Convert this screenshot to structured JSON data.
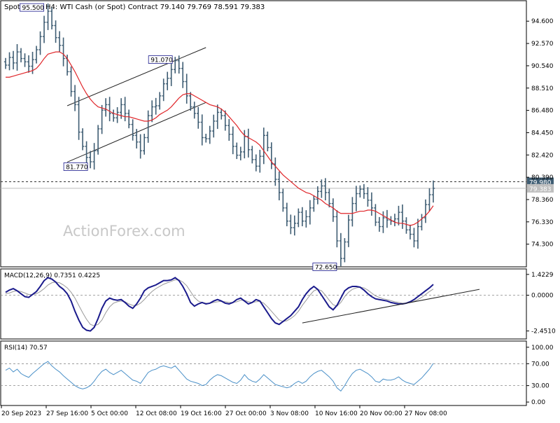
{
  "header": {
    "symbol": "SpotCrude",
    "timeframe": "H4:",
    "description": "WTI Cash (or Spot) Contract",
    "ohlc": "79.140 79.769 78.591 79.383"
  },
  "watermark": "ActionForex.com",
  "colors": {
    "candles": "#3f5d73",
    "ma": "#e0262a",
    "channel": "#222222",
    "macd_line": "#1a1a8c",
    "macd_signal": "#9a9a9a",
    "rsi_line": "#4a90c8",
    "grid_dash": "#888888"
  },
  "chart_data": [
    {
      "type": "line",
      "name": "price",
      "title": "SpotCrude, H4: WTI Cash (or Spot) Contract",
      "ylim": [
        72.3,
        96.4
      ],
      "y_ticks": [
        94.6,
        92.57,
        90.54,
        88.51,
        86.48,
        84.45,
        82.42,
        80.39,
        78.36,
        76.33,
        74.3
      ],
      "y_tick_labels": [
        "94.600",
        "92.570",
        "90.540",
        "88.510",
        "86.480",
        "84.450",
        "82.420",
        "80.390",
        "78.360",
        "76.330",
        "74.300"
      ],
      "x_ticks": [
        "20 Sep 2023",
        "27 Sep 16:00",
        "5 Oct 00:00",
        "12 Oct 08:00",
        "19 Oct 16:00",
        "27 Oct 00:00",
        "3 Nov 08:00",
        "10 Nov 16:00",
        "20 Nov 00:00",
        "27 Nov 08:00"
      ],
      "close": [
        90.6,
        91.3,
        90.8,
        91.8,
        91.2,
        90.9,
        90.5,
        91.1,
        92.0,
        93.2,
        94.5,
        95.5,
        94.2,
        93.1,
        92.4,
        91.2,
        90.0,
        88.2,
        87.0,
        84.5,
        83.2,
        82.2,
        81.8,
        82.8,
        84.8,
        86.5,
        87.0,
        86.2,
        85.8,
        86.3,
        87.0,
        86.2,
        85.2,
        84.2,
        83.6,
        82.8,
        84.0,
        86.0,
        86.8,
        86.9,
        87.8,
        88.9,
        89.4,
        90.2,
        91.0,
        90.3,
        89.1,
        87.8,
        86.8,
        86.2,
        85.4,
        84.0,
        83.9,
        84.6,
        85.5,
        86.3,
        86.0,
        85.1,
        84.3,
        83.2,
        82.4,
        82.7,
        84.1,
        82.9,
        82.0,
        81.4,
        82.3,
        84.2,
        83.1,
        81.6,
        80.2,
        79.0,
        77.6,
        76.4,
        75.8,
        76.2,
        77.2,
        76.4,
        76.8,
        77.6,
        78.4,
        79.1,
        79.6,
        79.0,
        78.0,
        76.8,
        74.6,
        73.0,
        74.5,
        76.5,
        78.0,
        78.9,
        79.3,
        78.9,
        78.3,
        77.6,
        76.3,
        75.9,
        76.7,
        76.5,
        76.4,
        76.6,
        77.2,
        76.4,
        75.6,
        75.2,
        74.6,
        75.9,
        76.7,
        77.9,
        78.8,
        79.383
      ],
      "ma": [
        89.5,
        89.5,
        89.6,
        89.7,
        89.8,
        89.9,
        90.0,
        90.1,
        90.3,
        90.7,
        91.2,
        91.6,
        91.7,
        91.8,
        91.8,
        91.6,
        91.2,
        90.6,
        90.0,
        89.3,
        88.6,
        88.0,
        87.5,
        87.1,
        86.8,
        86.7,
        86.6,
        86.4,
        86.2,
        86.1,
        86.0,
        85.9,
        85.9,
        85.8,
        85.7,
        85.6,
        85.5,
        85.5,
        85.6,
        85.8,
        86.1,
        86.3,
        86.5,
        86.8,
        87.2,
        87.6,
        87.9,
        88.0,
        88.0,
        87.8,
        87.6,
        87.4,
        87.2,
        87.0,
        86.9,
        86.8,
        86.6,
        86.3,
        85.9,
        85.5,
        85.1,
        84.6,
        84.2,
        84.0,
        83.8,
        83.6,
        83.3,
        82.8,
        82.3,
        81.8,
        81.4,
        81.0,
        80.6,
        80.3,
        80.0,
        79.7,
        79.4,
        79.2,
        79.0,
        78.9,
        78.7,
        78.5,
        78.3,
        78.0,
        77.8,
        77.6,
        77.3,
        77.1,
        77.1,
        77.1,
        77.1,
        77.2,
        77.3,
        77.3,
        77.4,
        77.4,
        77.3,
        77.1,
        76.9,
        76.7,
        76.5,
        76.3,
        76.2,
        76.2,
        76.1,
        76.0,
        76.1,
        76.3,
        76.6,
        76.9,
        77.3,
        77.8
      ],
      "annotations": [
        {
          "label": "95.500",
          "value": 95.5
        },
        {
          "label": "91.070",
          "value": 91.07
        },
        {
          "label": "81.770",
          "value": 81.77
        },
        {
          "label": "72.650",
          "value": 72.65
        }
      ],
      "level_lines": [
        {
          "label": "79.980",
          "value": 79.98,
          "style": "dashed"
        },
        {
          "label": "79.383",
          "value": 79.383,
          "style": "solid"
        }
      ],
      "channel_upper": {
        "start": [
          16,
          86.9
        ],
        "end": [
          52,
          92.2
        ]
      },
      "channel_lower": {
        "start": [
          16,
          81.77
        ],
        "end": [
          52,
          87.2
        ]
      }
    },
    {
      "type": "line",
      "name": "MACD",
      "label": "MACD(12,26,9) 0.7351 0.4225",
      "ylim": [
        -2.95,
        1.75
      ],
      "y_ticks": [
        1.4229,
        0.0,
        -2.451
      ],
      "y_tick_labels": [
        "1.4229",
        "0.0000",
        "-2.4510"
      ],
      "series": [
        {
          "name": "MACD",
          "values": [
            0.2,
            0.35,
            0.45,
            0.3,
            0.1,
            -0.1,
            -0.15,
            0.05,
            0.25,
            0.6,
            1.0,
            1.2,
            1.1,
            0.9,
            0.6,
            0.4,
            0.1,
            -0.4,
            -1.1,
            -1.7,
            -2.2,
            -2.4,
            -2.45,
            -2.2,
            -1.6,
            -0.9,
            -0.4,
            -0.2,
            -0.3,
            -0.35,
            -0.3,
            -0.5,
            -0.75,
            -0.9,
            -0.6,
            -0.2,
            0.3,
            0.5,
            0.6,
            0.7,
            0.85,
            1.0,
            1.0,
            1.05,
            1.2,
            1.0,
            0.6,
            0.1,
            -0.5,
            -0.75,
            -0.6,
            -0.5,
            -0.6,
            -0.55,
            -0.4,
            -0.3,
            -0.4,
            -0.55,
            -0.6,
            -0.5,
            -0.3,
            -0.2,
            -0.4,
            -0.6,
            -0.5,
            -0.3,
            -0.4,
            -0.8,
            -1.2,
            -1.6,
            -1.9,
            -2.0,
            -1.8,
            -1.6,
            -1.4,
            -1.1,
            -0.8,
            -0.3,
            0.1,
            0.4,
            0.6,
            0.4,
            0.0,
            -0.4,
            -0.8,
            -1.0,
            -0.7,
            -0.2,
            0.3,
            0.5,
            0.6,
            0.6,
            0.55,
            0.35,
            0.1,
            -0.1,
            -0.25,
            -0.3,
            -0.35,
            -0.4,
            -0.5,
            -0.55,
            -0.6,
            -0.6,
            -0.55,
            -0.45,
            -0.3,
            -0.1,
            0.1,
            0.3,
            0.5,
            0.7351
          ]
        },
        {
          "name": "Signal",
          "values": [
            0.1,
            0.15,
            0.25,
            0.3,
            0.25,
            0.15,
            0.05,
            0.05,
            0.1,
            0.25,
            0.45,
            0.7,
            0.85,
            0.9,
            0.85,
            0.7,
            0.5,
            0.2,
            -0.2,
            -0.7,
            -1.2,
            -1.65,
            -2.0,
            -2.1,
            -2.0,
            -1.7,
            -1.2,
            -0.8,
            -0.55,
            -0.45,
            -0.4,
            -0.45,
            -0.6,
            -0.7,
            -0.7,
            -0.55,
            -0.3,
            0.0,
            0.25,
            0.45,
            0.6,
            0.75,
            0.85,
            0.95,
            1.05,
            1.05,
            0.9,
            0.65,
            0.25,
            -0.15,
            -0.4,
            -0.5,
            -0.55,
            -0.55,
            -0.5,
            -0.45,
            -0.42,
            -0.45,
            -0.5,
            -0.5,
            -0.45,
            -0.35,
            -0.35,
            -0.45,
            -0.5,
            -0.45,
            -0.42,
            -0.55,
            -0.8,
            -1.1,
            -1.4,
            -1.7,
            -1.8,
            -1.75,
            -1.6,
            -1.4,
            -1.1,
            -0.7,
            -0.35,
            0.0,
            0.3,
            0.4,
            0.3,
            0.0,
            -0.35,
            -0.65,
            -0.75,
            -0.5,
            -0.1,
            0.2,
            0.4,
            0.5,
            0.55,
            0.5,
            0.35,
            0.15,
            -0.05,
            -0.15,
            -0.25,
            -0.3,
            -0.38,
            -0.45,
            -0.5,
            -0.55,
            -0.55,
            -0.5,
            -0.42,
            -0.3,
            -0.15,
            0.05,
            0.25,
            0.4225
          ]
        }
      ],
      "trendline": {
        "start": [
          77,
          -1.9
        ],
        "end": [
          123,
          0.4
        ]
      }
    },
    {
      "type": "line",
      "name": "RSI",
      "label": "RSI(14) 70.57",
      "ylim": [
        -5,
        110
      ],
      "y_ticks": [
        100,
        70,
        30,
        0
      ],
      "y_tick_labels": [
        "100.00",
        "70.00",
        "30.00",
        "0.00"
      ],
      "levels": [
        70,
        30
      ],
      "values": [
        58,
        62,
        55,
        60,
        52,
        48,
        45,
        52,
        58,
        64,
        70,
        74,
        66,
        60,
        55,
        48,
        42,
        36,
        30,
        26,
        24,
        26,
        30,
        38,
        48,
        56,
        60,
        54,
        50,
        54,
        58,
        52,
        46,
        40,
        38,
        34,
        44,
        54,
        58,
        60,
        64,
        66,
        64,
        62,
        66,
        58,
        50,
        42,
        38,
        36,
        34,
        30,
        32,
        40,
        46,
        50,
        48,
        44,
        40,
        36,
        34,
        40,
        50,
        42,
        38,
        36,
        42,
        50,
        44,
        38,
        32,
        30,
        28,
        26,
        28,
        34,
        38,
        34,
        38,
        46,
        52,
        56,
        58,
        52,
        46,
        38,
        26,
        20,
        30,
        42,
        52,
        58,
        60,
        56,
        52,
        46,
        38,
        36,
        42,
        40,
        40,
        42,
        46,
        40,
        36,
        34,
        32,
        38,
        44,
        52,
        60,
        70.57
      ]
    }
  ]
}
